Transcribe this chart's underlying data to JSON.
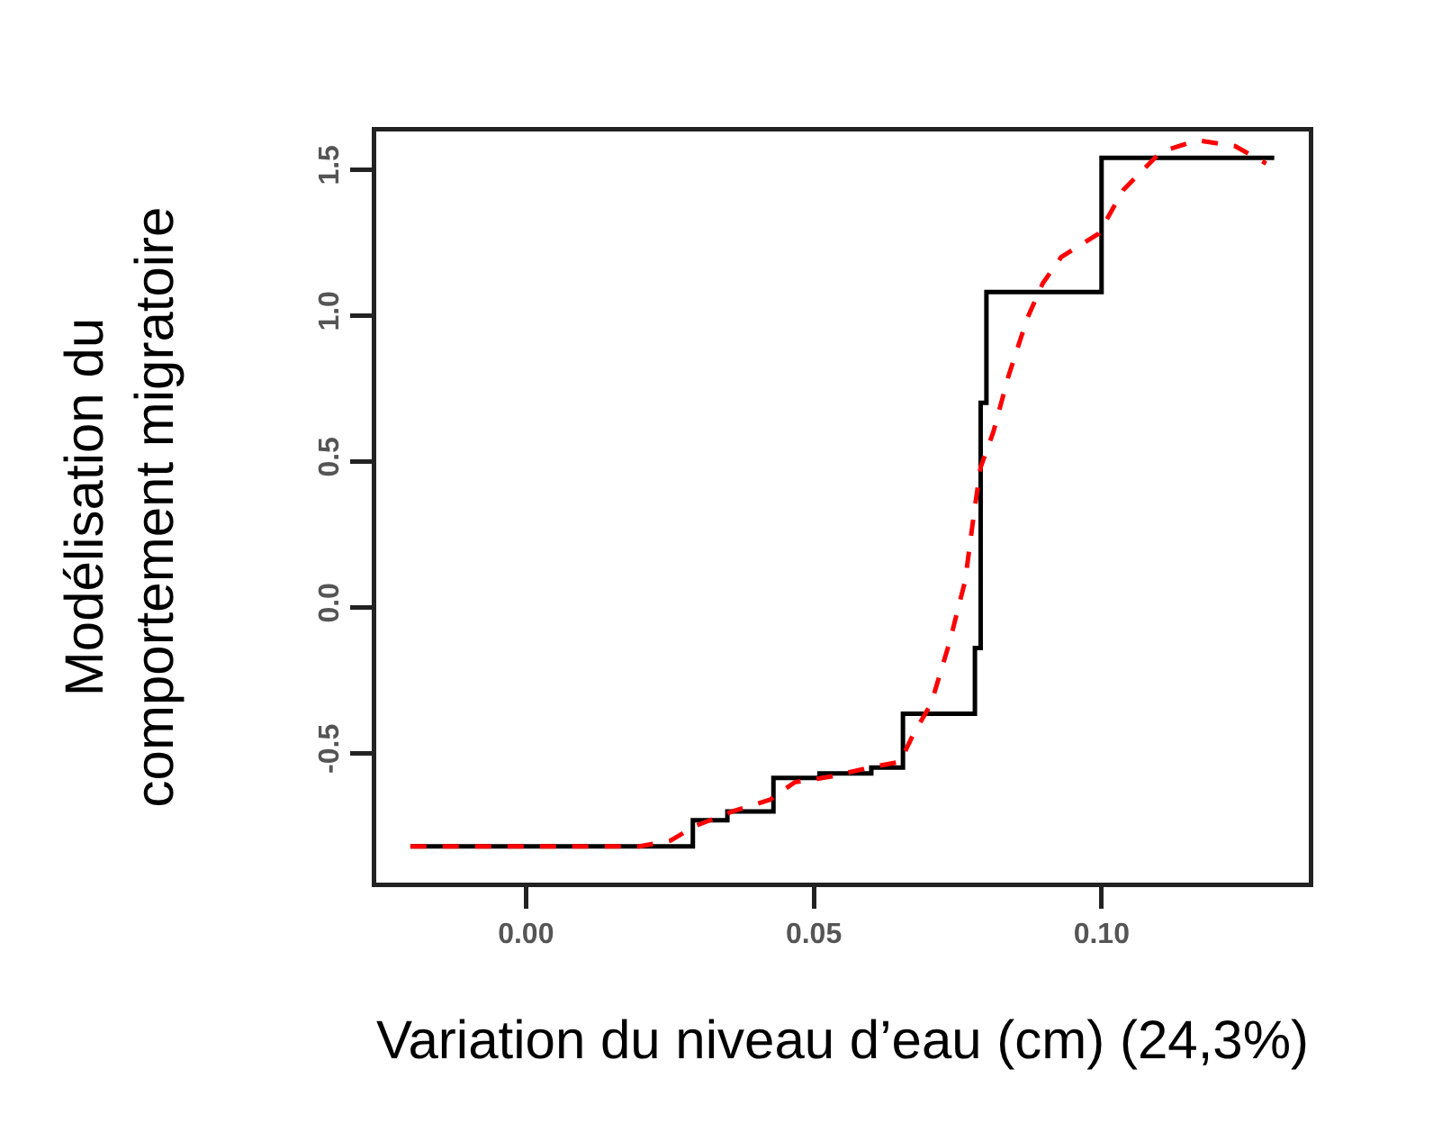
{
  "chart_data": {
    "type": "step",
    "xlabel": "Variation du niveau d’eau (cm) (24,3%)",
    "ylabel": "Modélisation du\ncomportement migratoire",
    "series": [
      {
        "color": "#000000",
        "line_style": "solid",
        "x": [
          -0.02,
          0.029,
          0.035,
          0.043,
          0.051,
          0.06,
          0.0655,
          0.078,
          0.079,
          0.08,
          0.1,
          0.13
        ],
        "values": [
          -0.82,
          -0.73,
          -0.7,
          -0.585,
          -0.57,
          -0.55,
          -0.365,
          -0.14,
          0.7,
          1.08,
          1.54,
          1.54
        ]
      },
      {
        "type": "line",
        "color": "#ff0000",
        "line_style": "dashed",
        "x": [
          -0.0201,
          0.0197,
          0.0251,
          0.0294,
          0.0359,
          0.0424,
          0.0467,
          0.0532,
          0.0596,
          0.065,
          0.0672,
          0.0704,
          0.0736,
          0.0763,
          0.0779,
          0.079,
          0.0812,
          0.0838,
          0.0871,
          0.0898,
          0.093,
          0.0995,
          0.1038,
          0.1103,
          0.1167,
          0.1232,
          0.1286
        ],
        "values": [
          -0.82,
          -0.82,
          -0.8,
          -0.75,
          -0.7,
          -0.66,
          -0.6,
          -0.58,
          -0.55,
          -0.53,
          -0.44,
          -0.33,
          -0.12,
          0.09,
          0.33,
          0.48,
          0.6,
          0.79,
          0.99,
          1.11,
          1.2,
          1.28,
          1.43,
          1.56,
          1.6,
          1.58,
          1.52
        ]
      }
    ],
    "xlim": [
      -0.026,
      0.136
    ],
    "ylim": [
      -0.944,
      1.63
    ],
    "xticks": [
      {
        "value": 0,
        "label": "0.00"
      },
      0.05,
      {
        "value": 0.1,
        "label": "0.10"
      }
    ],
    "yticks": [
      -0.5,
      {
        "value": 0,
        "label": "0.0"
      },
      0.5,
      {
        "value": 1,
        "label": "1.0"
      },
      1.5
    ],
    "grid": false,
    "marker": "none"
  }
}
